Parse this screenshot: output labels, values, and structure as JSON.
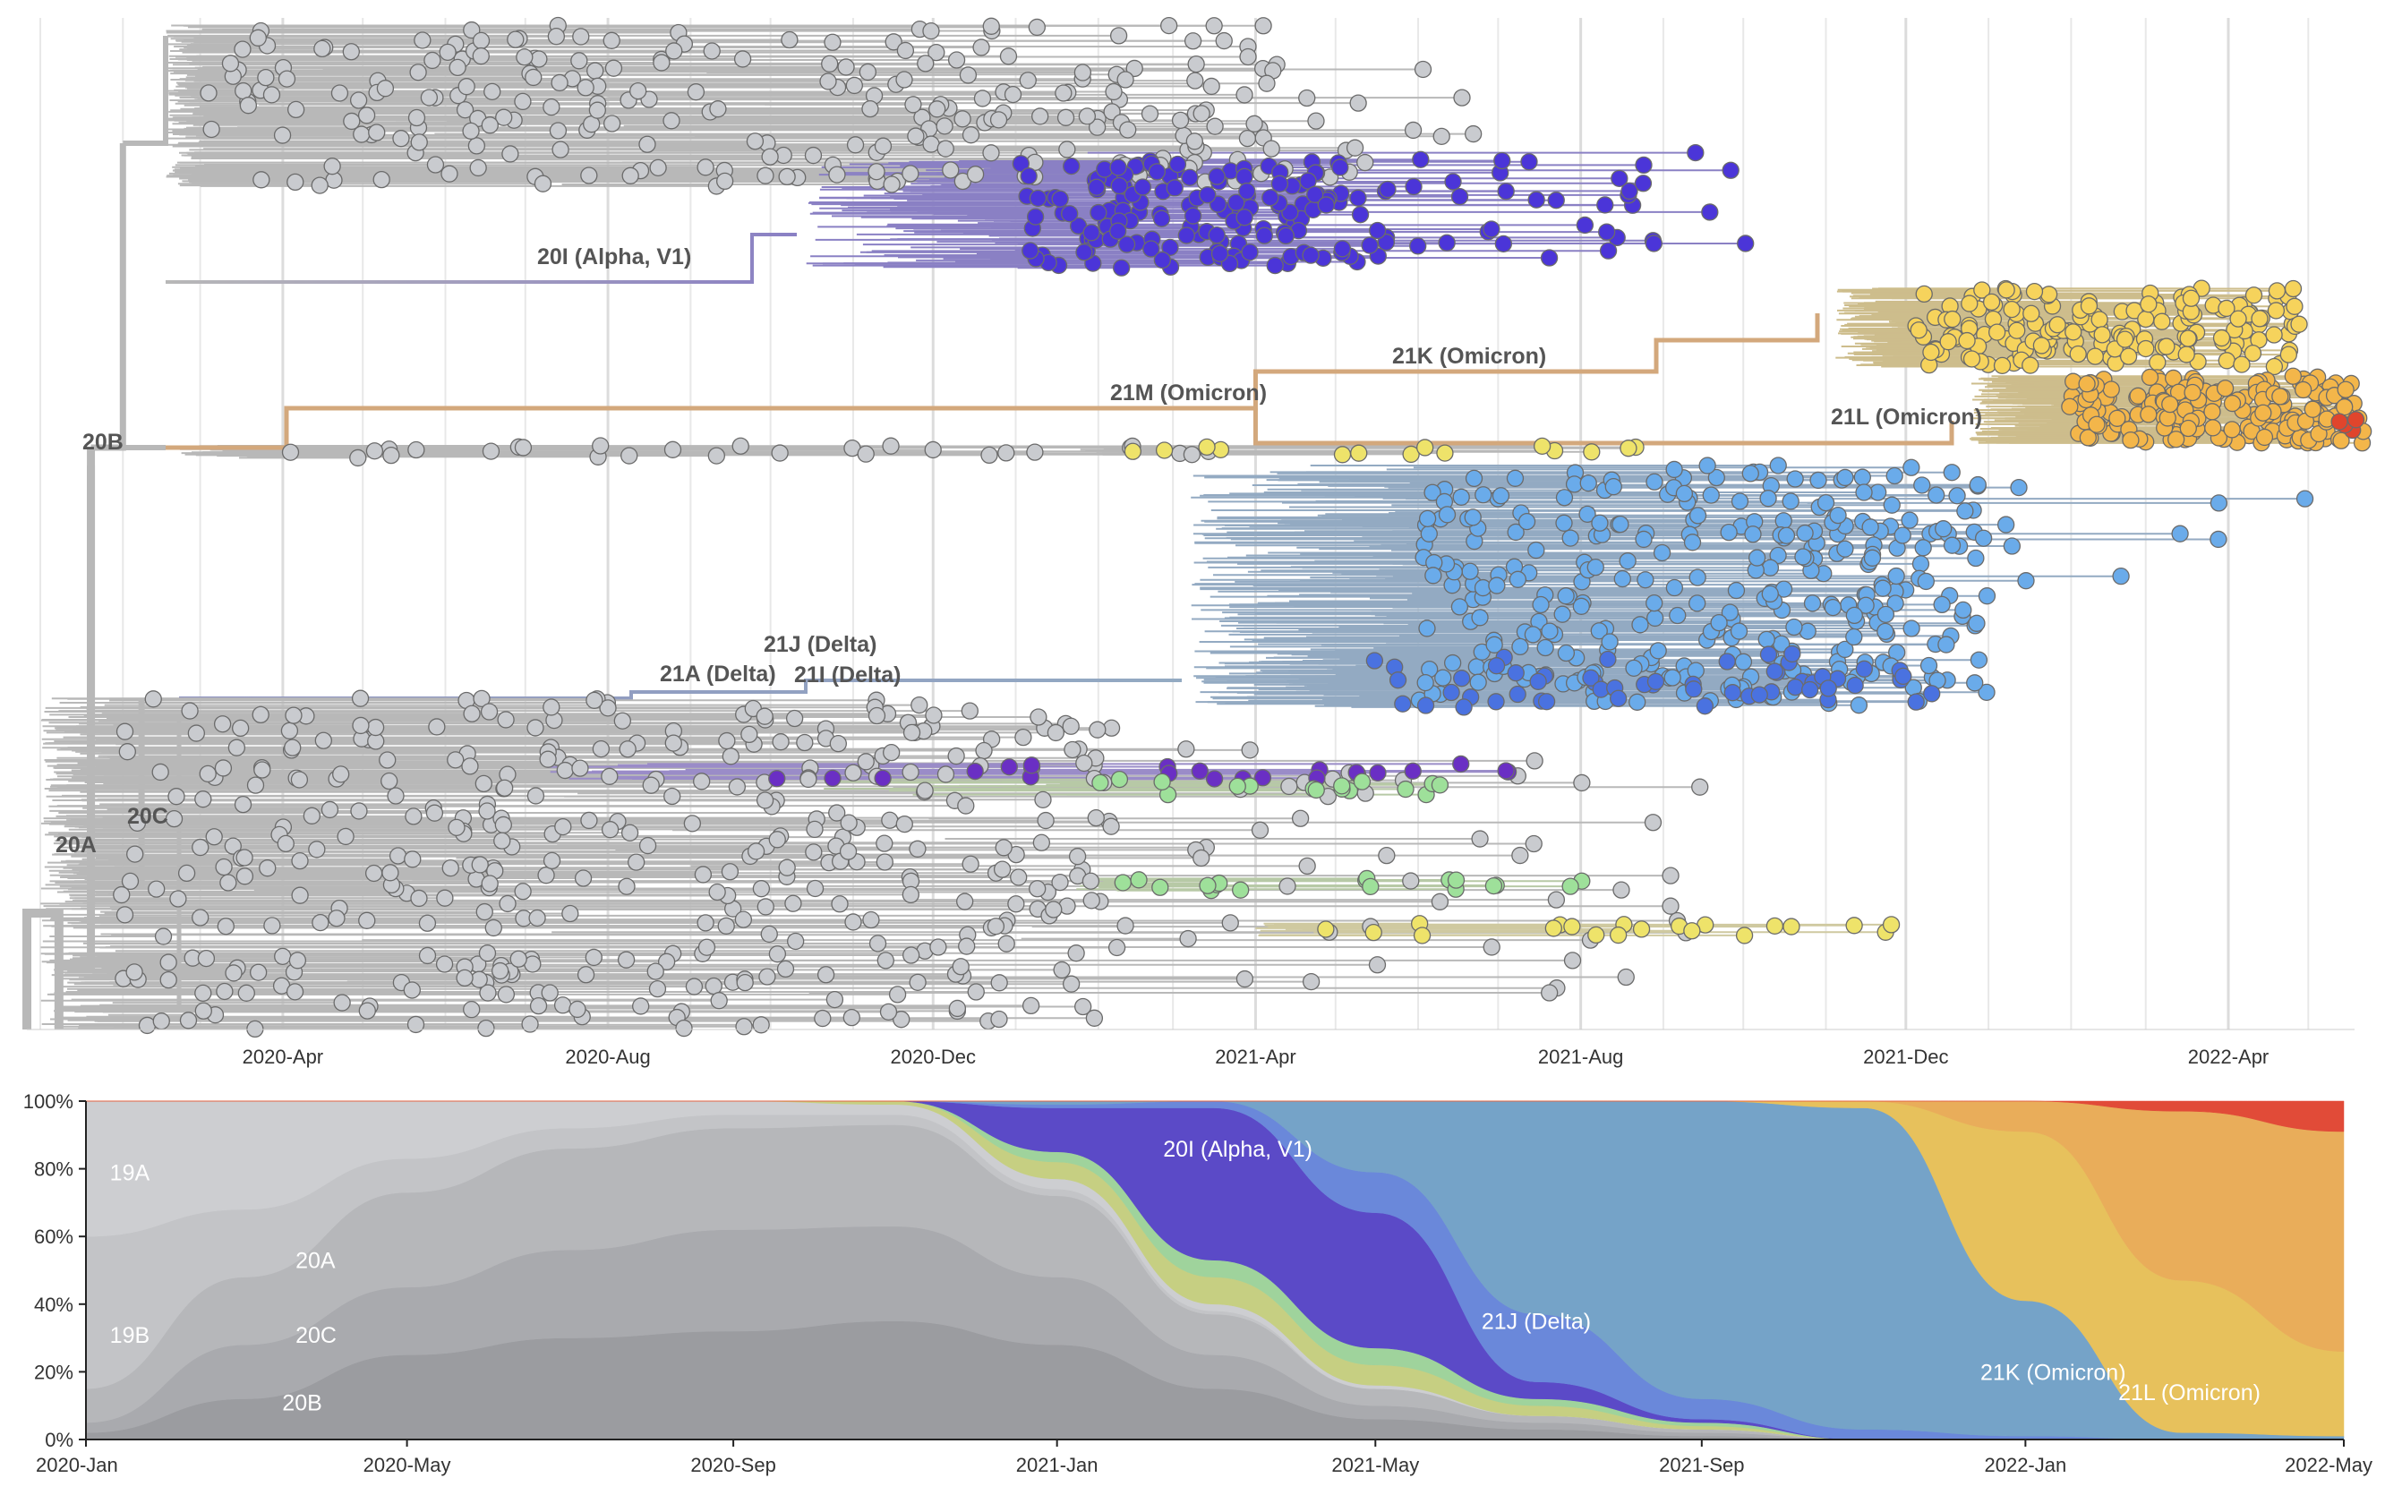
{
  "colors": {
    "background": "#ffffff",
    "grid": "#e8e8e8",
    "grid_major": "#dcdcdc",
    "branch_basal": "#b8b8b8",
    "tip_basal": "#c9cbcf",
    "alpha": "#4b35d8",
    "alpha_branch": "#8a80c4",
    "delta": "#6aabea",
    "delta_deep": "#4a72e0",
    "delta_branch": "#93aac2",
    "omicron_k": "#f6d35c",
    "omicron_l": "#f3b64a",
    "omicron_branch": "#cdbd8c",
    "omicron_21m_branch": "#d3a87c",
    "red": "#e0452c",
    "purple": "#6a2fc4",
    "green": "#9ee09a",
    "yellow": "#eee36a",
    "tick_text": "#333333",
    "clade_text": "#555555"
  },
  "chart_data": [
    {
      "type": "scatter",
      "description_role": "time-scaled phylogenetic tree of SARS-CoV-2 clades",
      "x_axis": {
        "type": "date",
        "ticks": [
          "2020-Apr",
          "2020-Aug",
          "2020-Dec",
          "2021-Apr",
          "2021-Aug",
          "2021-Dec",
          "2022-Apr"
        ],
        "tick_dates": [
          "2020-04-01",
          "2020-08-01",
          "2020-12-01",
          "2021-04-01",
          "2021-08-01",
          "2021-12-01",
          "2022-04-01"
        ],
        "range": [
          "2020-01-01",
          "2022-05-15"
        ],
        "minor_grid": "monthly",
        "major_grid": "every 4 months"
      },
      "clade_labels": [
        "20I (Alpha, V1)",
        "21M (Omicron)",
        "21K (Omicron)",
        "21L (Omicron)",
        "20B",
        "21J (Delta)",
        "21A (Delta)",
        "21I (Delta)",
        "20C",
        "20A"
      ],
      "groups": [
        {
          "clade": "20B background",
          "date_range": [
            "2020-03-01",
            "2021-09-15"
          ],
          "color_key": "tip_basal"
        },
        {
          "clade": "20I (Alpha, V1)",
          "date_range": [
            "2020-10-15",
            "2021-09-15"
          ],
          "color_key": "alpha"
        },
        {
          "clade": "21K (Omicron)",
          "date_range": [
            "2021-11-20",
            "2022-05-01"
          ],
          "color_key": "omicron_k"
        },
        {
          "clade": "21L (Omicron)",
          "date_range": [
            "2021-12-15",
            "2022-05-01"
          ],
          "color_key": "omicron_l"
        },
        {
          "clade": "21J (Delta)",
          "date_range": [
            "2021-04-01",
            "2022-04-01"
          ],
          "color_key": "delta"
        },
        {
          "clade": "20A / 20C background",
          "date_range": [
            "2020-01-15",
            "2021-09-30"
          ],
          "color_key": "tip_basal"
        }
      ]
    },
    {
      "type": "area",
      "description_role": "clade frequencies over time (stacked, normalized)",
      "x": [
        "2020-01",
        "2020-03",
        "2020-05",
        "2020-07",
        "2020-09",
        "2020-11",
        "2021-01",
        "2021-03",
        "2021-05",
        "2021-07",
        "2021-09",
        "2021-11",
        "2022-01",
        "2022-03",
        "2022-05"
      ],
      "x_ticks": [
        "2020-Jan",
        "2020-May",
        "2020-Sep",
        "2021-Jan",
        "2021-May",
        "2021-Sep",
        "2022-Jan",
        "2022-May"
      ],
      "y_ticks": [
        "0%",
        "20%",
        "40%",
        "60%",
        "80%",
        "100%"
      ],
      "ylim": [
        0,
        100
      ],
      "series": [
        {
          "name": "20B",
          "color": "#9b9ca0",
          "values": [
            2,
            12,
            25,
            30,
            32,
            35,
            28,
            15,
            6,
            3,
            1,
            0,
            0,
            0,
            0
          ]
        },
        {
          "name": "20C",
          "color": "#a9aaae",
          "values": [
            3,
            16,
            20,
            26,
            30,
            28,
            20,
            10,
            4,
            2,
            1,
            0,
            0,
            0,
            0
          ]
        },
        {
          "name": "20A",
          "color": "#b6b7ba",
          "values": [
            10,
            20,
            28,
            30,
            30,
            30,
            24,
            12,
            5,
            2,
            1,
            0,
            0,
            0,
            0
          ]
        },
        {
          "name": "19B",
          "color": "#c3c4c7",
          "values": [
            45,
            20,
            10,
            6,
            4,
            3,
            2,
            1,
            0,
            0,
            0,
            0,
            0,
            0,
            0
          ]
        },
        {
          "name": "19A",
          "color": "#cdced1",
          "values": [
            40,
            32,
            17,
            8,
            4,
            3,
            3,
            2,
            1,
            0,
            0,
            0,
            0,
            0,
            0
          ]
        },
        {
          "name": "",
          "color": "#c6cf82",
          "values": [
            0,
            0,
            0,
            0,
            0,
            1,
            5,
            8,
            6,
            3,
            1,
            0,
            0,
            0,
            0
          ]
        },
        {
          "name": "",
          "color": "#9fd39c",
          "values": [
            0,
            0,
            0,
            0,
            0,
            0,
            3,
            5,
            5,
            2,
            1,
            0,
            0,
            0,
            0
          ]
        },
        {
          "name": "20I (Alpha, V1)",
          "color": "#5b4ac7",
          "values": [
            0,
            0,
            0,
            0,
            0,
            0,
            13,
            45,
            40,
            5,
            1,
            0,
            0,
            0,
            0
          ]
        },
        {
          "name": "",
          "color": "#6a88da",
          "values": [
            0,
            0,
            0,
            0,
            0,
            0,
            1,
            2,
            12,
            20,
            6,
            3,
            1,
            0,
            0
          ]
        },
        {
          "name": "21J (Delta)",
          "color": "#75a3c8",
          "values": [
            0,
            0,
            0,
            0,
            0,
            0,
            1,
            0,
            21,
            63,
            88,
            95,
            40,
            2,
            1
          ]
        },
        {
          "name": "21K (Omicron)",
          "color": "#e7c15c",
          "values": [
            0,
            0,
            0,
            0,
            0,
            0,
            0,
            0,
            0,
            0,
            0,
            2,
            50,
            45,
            25
          ]
        },
        {
          "name": "21L (Omicron)",
          "color": "#e9ad5a",
          "values": [
            0,
            0,
            0,
            0,
            0,
            0,
            0,
            0,
            0,
            0,
            0,
            0,
            9,
            50,
            65
          ]
        },
        {
          "name": "",
          "color": "#e14b38",
          "values": [
            0,
            0,
            0,
            0,
            0,
            0,
            0,
            0,
            0,
            0,
            0,
            0,
            0,
            3,
            9
          ]
        }
      ],
      "labels": [
        {
          "text": "19A",
          "date": "2020-01-10",
          "y": 79
        },
        {
          "text": "20A",
          "date": "2020-03-20",
          "y": 53
        },
        {
          "text": "19B",
          "date": "2020-01-10",
          "y": 31
        },
        {
          "text": "20C",
          "date": "2020-03-20",
          "y": 31
        },
        {
          "text": "20B",
          "date": "2020-03-15",
          "y": 11
        },
        {
          "text": "20I (Alpha, V1)",
          "date": "2021-02-10",
          "y": 86
        },
        {
          "text": "21J (Delta)",
          "date": "2021-06-10",
          "y": 35
        },
        {
          "text": "21K (Omicron)",
          "date": "2021-12-15",
          "y": 20
        },
        {
          "text": "21L (Omicron)",
          "date": "2022-02-05",
          "y": 14
        }
      ]
    }
  ]
}
